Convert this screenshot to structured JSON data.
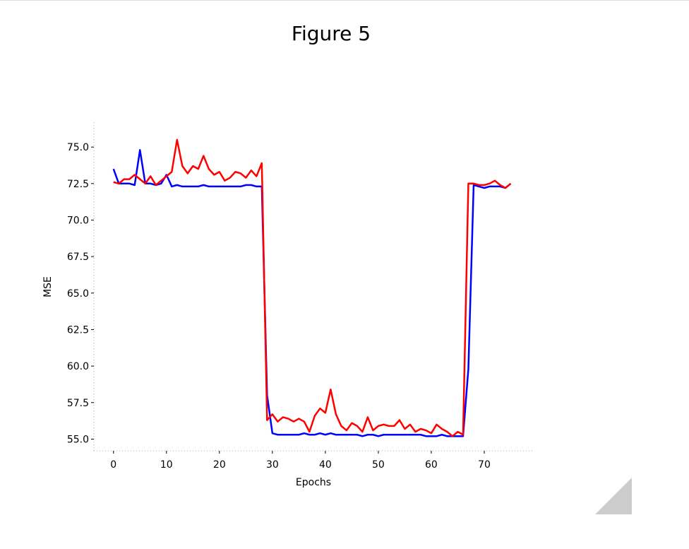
{
  "chart_data": {
    "type": "line",
    "title": "Figure 5",
    "xlabel": "Epochs",
    "ylabel": "MSE",
    "x": [
      0,
      1,
      2,
      3,
      4,
      5,
      6,
      7,
      8,
      9,
      10,
      11,
      12,
      13,
      14,
      15,
      16,
      17,
      18,
      19,
      20,
      21,
      22,
      23,
      24,
      25,
      26,
      27,
      28,
      29,
      30,
      31,
      32,
      33,
      34,
      35,
      36,
      37,
      38,
      39,
      40,
      41,
      42,
      43,
      44,
      45,
      46,
      47,
      48,
      49,
      50,
      51,
      52,
      53,
      54,
      55,
      56,
      57,
      58,
      59,
      60,
      61,
      62,
      63,
      64,
      65,
      66,
      67,
      68,
      69,
      70,
      71,
      72,
      73,
      74,
      75
    ],
    "series": [
      {
        "color": "#0000ff",
        "values": [
          73.5,
          72.5,
          72.5,
          72.5,
          72.4,
          74.8,
          72.5,
          72.5,
          72.4,
          72.5,
          73.1,
          72.3,
          72.4,
          72.3,
          72.3,
          72.3,
          72.3,
          72.4,
          72.3,
          72.3,
          72.3,
          72.3,
          72.3,
          72.3,
          72.3,
          72.4,
          72.4,
          72.3,
          72.3,
          58.0,
          55.4,
          55.3,
          55.3,
          55.3,
          55.3,
          55.3,
          55.4,
          55.3,
          55.3,
          55.4,
          55.3,
          55.4,
          55.3,
          55.3,
          55.3,
          55.3,
          55.3,
          55.2,
          55.3,
          55.3,
          55.2,
          55.3,
          55.3,
          55.3,
          55.3,
          55.3,
          55.3,
          55.3,
          55.3,
          55.2,
          55.2,
          55.2,
          55.3,
          55.2,
          55.2,
          55.2,
          55.2,
          59.8,
          72.4,
          72.3,
          72.2,
          72.3,
          72.3,
          72.3,
          72.2,
          72.5
        ]
      },
      {
        "color": "#ff0000",
        "values": [
          72.6,
          72.5,
          72.8,
          72.8,
          73.1,
          72.8,
          72.5,
          73.0,
          72.4,
          72.7,
          73.0,
          73.3,
          75.5,
          73.7,
          73.2,
          73.7,
          73.5,
          74.4,
          73.5,
          73.1,
          73.3,
          72.7,
          72.9,
          73.3,
          73.2,
          72.9,
          73.4,
          73.0,
          73.9,
          56.3,
          56.7,
          56.2,
          56.5,
          56.4,
          56.2,
          56.4,
          56.2,
          55.5,
          56.6,
          57.1,
          56.8,
          58.4,
          56.7,
          55.9,
          55.6,
          56.1,
          55.9,
          55.5,
          56.5,
          55.6,
          55.9,
          56.0,
          55.9,
          55.9,
          56.3,
          55.7,
          56.0,
          55.5,
          55.7,
          55.6,
          55.4,
          56.0,
          55.7,
          55.5,
          55.2,
          55.5,
          55.3,
          72.5,
          72.5,
          72.4,
          72.4,
          72.5,
          72.7,
          72.4,
          72.2,
          72.5
        ]
      }
    ],
    "xlim": [
      -3.7,
      79.2
    ],
    "ylim": [
      54.2,
      76.7
    ],
    "xticks": [
      0,
      10,
      20,
      30,
      40,
      50,
      60,
      70
    ],
    "yticks": [
      {
        "value": 55,
        "label": "55.0"
      },
      57.5,
      {
        "value": 60,
        "label": "60.0"
      },
      62.5,
      {
        "value": 65,
        "label": "65.0"
      },
      67.5,
      {
        "value": 70,
        "label": "70.0"
      },
      72.5,
      {
        "value": 75,
        "label": "75.0"
      }
    ]
  }
}
